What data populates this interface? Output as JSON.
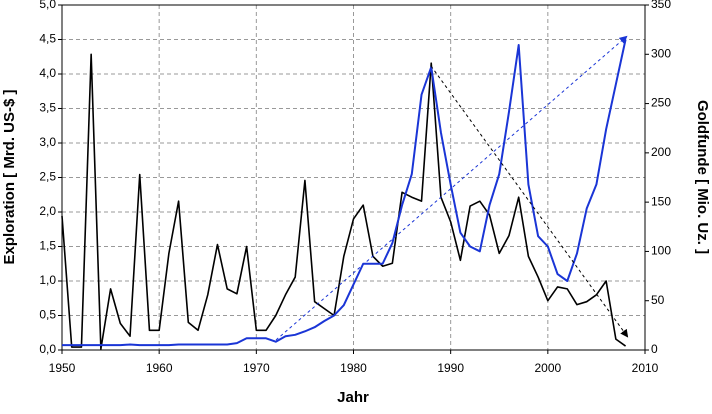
{
  "chart_data": {
    "type": "line",
    "xlabel": "Jahr",
    "ylabel": "Exploration [ Mrd. US-$ ]",
    "y2label": "Goldfunde [ Mio. Uz. ]",
    "x": [
      1950,
      1951,
      1952,
      1953,
      1954,
      1955,
      1956,
      1957,
      1958,
      1959,
      1960,
      1961,
      1962,
      1963,
      1964,
      1965,
      1966,
      1967,
      1968,
      1969,
      1970,
      1971,
      1972,
      1973,
      1974,
      1975,
      1976,
      1977,
      1978,
      1979,
      1980,
      1981,
      1982,
      1983,
      1984,
      1985,
      1986,
      1987,
      1988,
      1989,
      1990,
      1991,
      1992,
      1993,
      1994,
      1995,
      1996,
      1997,
      1998,
      1999,
      2000,
      2001,
      2002,
      2003,
      2004,
      2005,
      2006,
      2007,
      2008
    ],
    "series": [
      {
        "color": "#000000",
        "axis": "y2",
        "values": [
          136,
          3,
          3,
          300,
          1,
          62,
          27,
          14,
          178,
          20,
          20,
          98,
          151,
          28,
          20,
          56,
          107,
          62,
          57,
          105,
          20,
          20,
          35,
          56,
          74,
          172,
          49,
          42,
          35,
          95,
          133,
          147,
          95,
          85,
          88,
          160,
          155,
          151,
          291,
          155,
          130,
          91,
          146,
          151,
          137,
          98,
          116,
          155,
          95,
          74,
          50,
          64,
          62,
          46,
          49,
          56,
          70,
          11,
          4
        ]
      },
      {
        "color": "#1a35d6",
        "values": [
          0.07,
          0.07,
          0.07,
          0.07,
          0.07,
          0.07,
          0.07,
          0.08,
          0.07,
          0.07,
          0.07,
          0.07,
          0.08,
          0.08,
          0.08,
          0.08,
          0.08,
          0.08,
          0.1,
          0.17,
          0.17,
          0.17,
          0.12,
          0.2,
          0.22,
          0.27,
          0.33,
          0.42,
          0.5,
          0.65,
          0.95,
          1.25,
          1.25,
          1.25,
          1.55,
          2.1,
          2.55,
          3.7,
          4.1,
          3.15,
          2.4,
          1.7,
          1.5,
          1.43,
          2.1,
          2.55,
          3.45,
          4.42,
          2.4,
          1.65,
          1.5,
          1.1,
          1.0,
          1.4,
          2.05,
          2.4,
          3.2,
          3.85,
          4.5
        ]
      }
    ],
    "xlim": [
      1950,
      2010
    ],
    "xticks": [
      1950,
      1960,
      1970,
      1980,
      1990,
      2000,
      2010
    ],
    "ylim": [
      0,
      5
    ],
    "yticks": [
      {
        "value": 0,
        "label": "0,0"
      },
      {
        "value": 0.5,
        "label": "0,5"
      },
      {
        "value": 1,
        "label": "1,0"
      },
      {
        "value": 1.5,
        "label": "1,5"
      },
      {
        "value": 2,
        "label": "2,0"
      },
      {
        "value": 2.5,
        "label": "2,5"
      },
      {
        "value": 3,
        "label": "3,0"
      },
      {
        "value": 3.5,
        "label": "3,5"
      },
      {
        "value": 4,
        "label": "4,0"
      },
      {
        "value": 4.5,
        "label": "4,5"
      },
      {
        "value": 5,
        "label": "5,0"
      }
    ],
    "y2lim": [
      0,
      350
    ],
    "y2ticks": [
      0,
      50,
      100,
      150,
      200,
      250,
      300,
      350
    ],
    "grid": true
  }
}
